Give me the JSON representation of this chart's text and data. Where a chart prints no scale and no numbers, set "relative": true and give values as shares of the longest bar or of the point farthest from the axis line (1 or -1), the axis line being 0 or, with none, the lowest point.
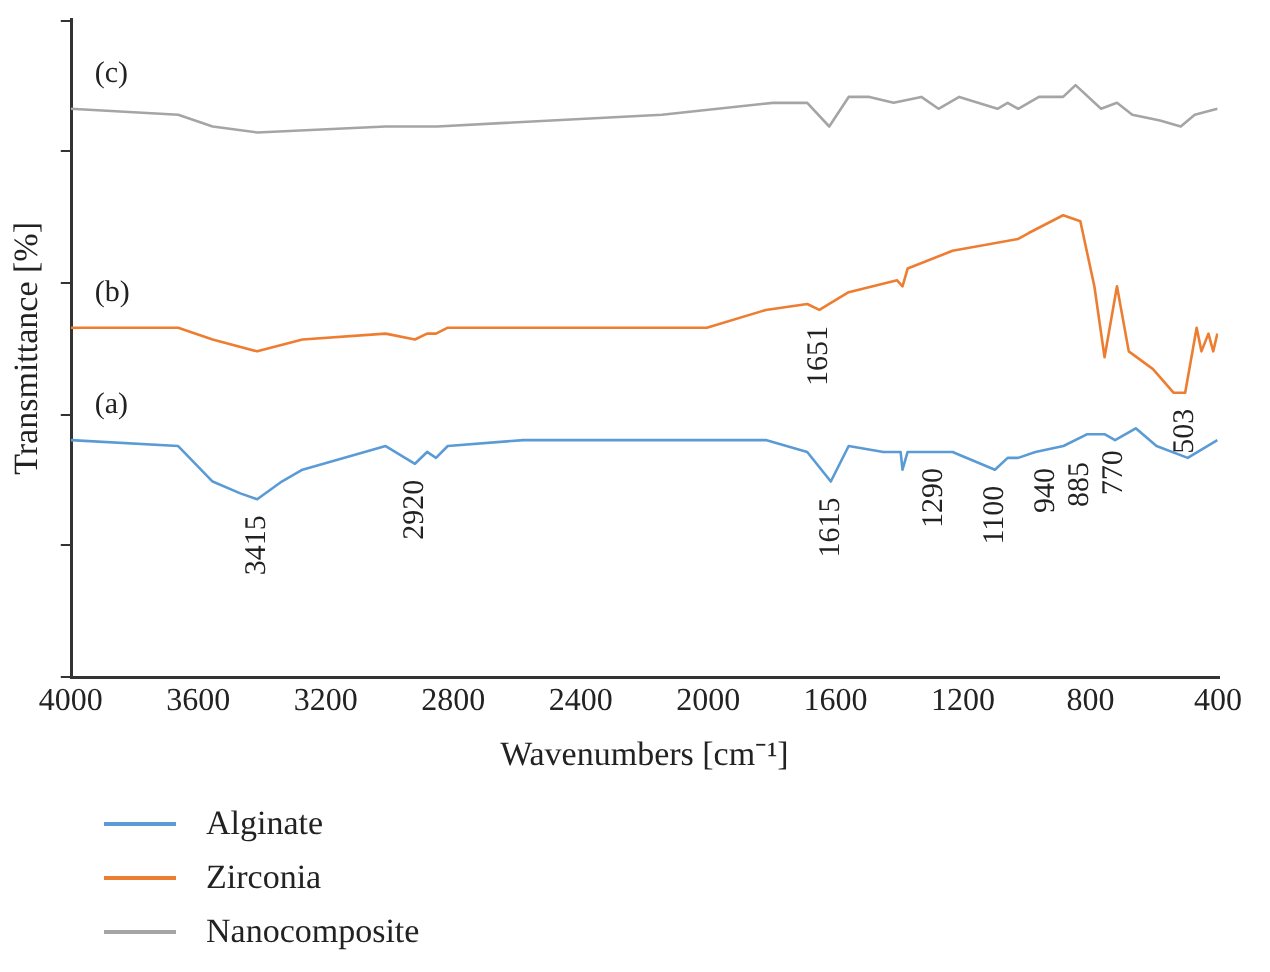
{
  "chart_data": {
    "type": "line",
    "relative": true,
    "xlabel": "Wavenumbers [cm⁻¹]",
    "ylabel": "Transmittance [%]",
    "xlim": [
      4000,
      400
    ],
    "xticks": [
      4000,
      3600,
      3200,
      2800,
      2400,
      2000,
      1600,
      1200,
      800,
      400
    ],
    "legend": "bottom left",
    "grid": false,
    "marker": "none",
    "line_style": "solid",
    "series": [
      {
        "name": "Alginate",
        "color": "#5b9bd5",
        "x": [
          4000,
          3663,
          3555,
          3468,
          3415,
          3338,
          3273,
          3012,
          2920,
          2882,
          2854,
          2817,
          2580,
          2210,
          1819,
          1689,
          1615,
          1559,
          1450,
          1396,
          1390,
          1374,
          1233,
          1100,
          1060,
          1027,
          973,
          885,
          810,
          756,
          723,
          658,
          593,
          495,
          402
        ],
        "values": [
          0.4,
          0.39,
          0.33,
          0.31,
          0.3,
          0.33,
          0.35,
          0.39,
          0.36,
          0.38,
          0.37,
          0.39,
          0.4,
          0.4,
          0.4,
          0.38,
          0.33,
          0.39,
          0.38,
          0.38,
          0.35,
          0.38,
          0.38,
          0.35,
          0.37,
          0.37,
          0.38,
          0.39,
          0.41,
          0.41,
          0.4,
          0.42,
          0.39,
          0.37,
          0.4
        ]
      },
      {
        "name": "Zirconia",
        "color": "#ed7d31",
        "x": [
          4000,
          3663,
          3555,
          3415,
          3273,
          3012,
          2920,
          2882,
          2854,
          2817,
          2210,
          2004,
          1819,
          1689,
          1651,
          1559,
          1407,
          1390,
          1374,
          1233,
          1027,
          994,
          886,
          832,
          788,
          756,
          717,
          680,
          604,
          539,
          503,
          467,
          452,
          430,
          415,
          402
        ],
        "values": [
          0.59,
          0.59,
          0.57,
          0.55,
          0.57,
          0.58,
          0.57,
          0.58,
          0.58,
          0.59,
          0.59,
          0.59,
          0.62,
          0.63,
          0.62,
          0.65,
          0.67,
          0.66,
          0.69,
          0.72,
          0.74,
          0.75,
          0.78,
          0.77,
          0.66,
          0.54,
          0.66,
          0.55,
          0.52,
          0.48,
          0.48,
          0.59,
          0.55,
          0.58,
          0.55,
          0.58
        ]
      },
      {
        "name": "Nanocomposite",
        "color": "#a5a5a5",
        "x": [
          4000,
          3663,
          3555,
          3415,
          3012,
          2920,
          2850,
          2145,
          1797,
          1689,
          1620,
          1559,
          1494,
          1418,
          1331,
          1277,
          1212,
          1092,
          1060,
          1027,
          962,
          886,
          847,
          767,
          717,
          669,
          582,
          517,
          473,
          402
        ],
        "values": [
          0.96,
          0.95,
          0.93,
          0.92,
          0.93,
          0.93,
          0.93,
          0.95,
          0.97,
          0.97,
          0.93,
          0.98,
          0.98,
          0.97,
          0.98,
          0.96,
          0.98,
          0.96,
          0.97,
          0.96,
          0.98,
          0.98,
          1,
          0.96,
          0.97,
          0.95,
          0.94,
          0.93,
          0.95,
          0.96
        ]
      }
    ],
    "annotations": [
      "(c)",
      "(b)",
      "(a)",
      {
        "text": "3415",
        "x": 3415,
        "y": 0.3
      },
      {
        "text": "2920",
        "x": 2920,
        "y": 0.36
      },
      {
        "text": "1651",
        "x": 1651,
        "y": 0.62
      },
      {
        "text": "1615",
        "x": 1615,
        "y": 0.33
      },
      {
        "text": "1290",
        "x": 1290,
        "y": 0.38
      },
      {
        "text": "1100",
        "x": 1100,
        "y": 0.35
      },
      {
        "text": "940",
        "x": 940,
        "y": 0.38
      },
      {
        "text": "885",
        "x": 885,
        "y": 0.39
      },
      {
        "text": "770",
        "x": 770,
        "y": 0.41
      },
      {
        "text": "503",
        "x": 503,
        "y": 0.48
      }
    ]
  }
}
